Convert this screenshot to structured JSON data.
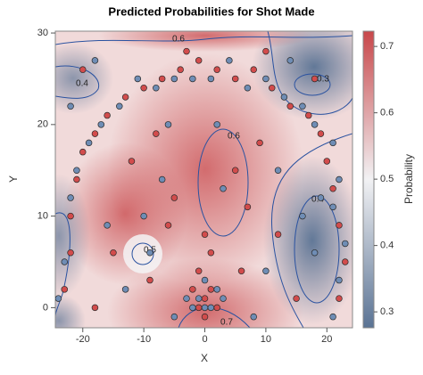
{
  "chart_data": {
    "type": "scatter",
    "title": "Predicted Probabilities for Shot Made",
    "x_label": "X",
    "y_label": "Y",
    "xlim": [
      -24.5,
      24.2
    ],
    "ylim": [
      -2.2,
      30.2
    ],
    "xticks": [
      -20,
      -10,
      0,
      10,
      20
    ],
    "yticks": [
      0,
      10,
      20,
      30
    ],
    "colorbar_label": "Probability",
    "clim": [
      0.276,
      0.723
    ],
    "cticks": [
      0.3,
      0.4,
      0.5,
      0.6,
      0.7
    ],
    "colormap": [
      "#c8474a",
      "#f2f2f4",
      "#5a7394"
    ],
    "contour_labels": [
      0.6,
      0.4,
      0.3,
      0.6,
      0.4,
      0.5,
      0.7
    ],
    "series": [
      {
        "color": "#d24c4c",
        "x": [
          -23,
          -22,
          -22,
          -21,
          -20,
          -18,
          -16,
          -13,
          -10,
          -7,
          -4,
          -1,
          2,
          5,
          8,
          11,
          14,
          17,
          19,
          20,
          21,
          22,
          23,
          22,
          -1,
          0,
          1,
          -2,
          2,
          0,
          -1,
          1,
          0,
          -5,
          -12,
          -8,
          5,
          9,
          -15,
          -9,
          6,
          12,
          -18,
          15,
          -20,
          10,
          -3,
          18,
          -6,
          7
        ],
        "y": [
          2,
          6,
          10,
          14,
          17,
          19,
          21,
          23,
          24,
          25,
          26,
          27,
          26,
          25,
          26,
          24,
          22,
          21,
          19,
          16,
          13,
          9,
          5,
          1,
          0,
          1,
          2,
          2,
          0,
          -1,
          4,
          6,
          8,
          12,
          16,
          19,
          15,
          18,
          6,
          3,
          4,
          8,
          0,
          1,
          26,
          28,
          28,
          25,
          9,
          11
        ]
      },
      {
        "color": "#6f8db5",
        "x": [
          -24,
          -23,
          -22,
          -21,
          -19,
          -17,
          -14,
          -11,
          -8,
          -5,
          -2,
          1,
          4,
          7,
          10,
          13,
          16,
          18,
          21,
          22,
          21,
          23,
          22,
          21,
          0,
          -1,
          1,
          2,
          -2,
          0,
          -3,
          3,
          -10,
          -7,
          3,
          12,
          16,
          18,
          -13,
          -5,
          8,
          -16,
          14,
          -18,
          2,
          -6,
          10,
          -22,
          19,
          -9
        ],
        "y": [
          1,
          5,
          12,
          15,
          18,
          20,
          22,
          25,
          24,
          25,
          25,
          25,
          27,
          24,
          25,
          23,
          22,
          20,
          18,
          14,
          11,
          7,
          3,
          -1,
          0,
          1,
          0,
          2,
          0,
          3,
          1,
          1,
          10,
          14,
          13,
          15,
          10,
          6,
          2,
          -1,
          -1,
          9,
          27,
          27,
          20,
          20,
          4,
          22,
          12,
          6
        ]
      }
    ]
  }
}
